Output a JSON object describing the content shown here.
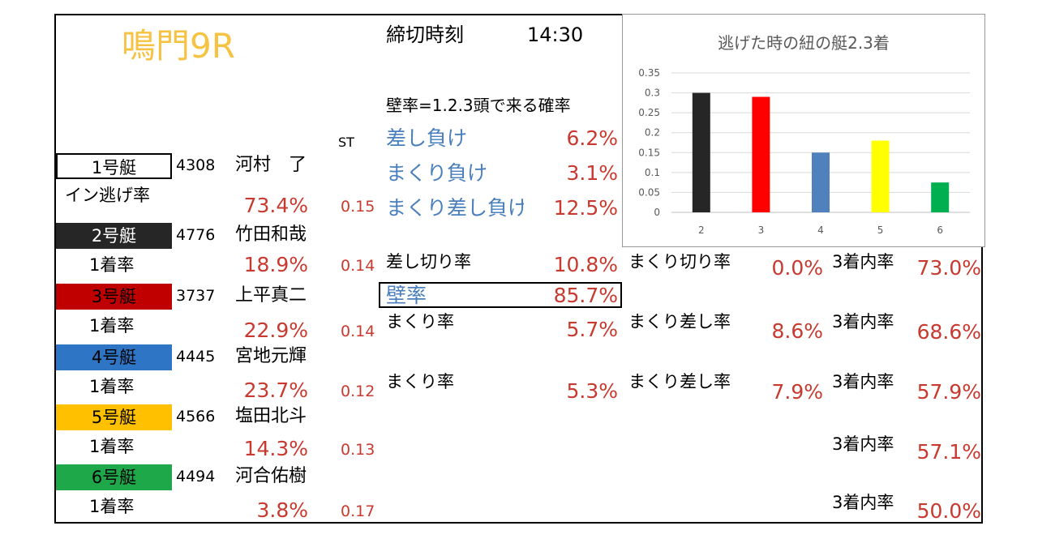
{
  "header": {
    "race": "鳴門9R",
    "deadline_label": "締切時刻",
    "deadline_time": "14:30",
    "kabe_def": "壁率=1.2.3頭で来る確率",
    "st_label": "ST"
  },
  "lose_stats": [
    {
      "label": "差し負け",
      "value": "6.2%"
    },
    {
      "label": "まくり負け",
      "value": "3.1%"
    },
    {
      "label": "まくり差し負け",
      "value": "12.5%"
    }
  ],
  "boats": [
    {
      "boat": "1号艇",
      "id": "4308",
      "name": "河村　了",
      "rate_label": "イン逃げ率",
      "rate": "73.4%",
      "st": "0.15",
      "bg": "#ffffff",
      "fg": "#000000"
    },
    {
      "boat": "2号艇",
      "id": "4776",
      "name": "竹田和哉",
      "rate_label": "1着率",
      "rate": "18.9%",
      "st": "0.14",
      "bg": "#262626",
      "fg": "#ffffff"
    },
    {
      "boat": "3号艇",
      "id": "3737",
      "name": "上平真二",
      "rate_label": "1着率",
      "rate": "22.9%",
      "st": "0.14",
      "bg": "#c00000",
      "fg": "#000000"
    },
    {
      "boat": "4号艇",
      "id": "4445",
      "name": "宮地元輝",
      "rate_label": "1着率",
      "rate": "23.7%",
      "st": "0.12",
      "bg": "#2e75c6",
      "fg": "#000000"
    },
    {
      "boat": "5号艇",
      "id": "4566",
      "name": "塩田北斗",
      "rate_label": "1着率",
      "rate": "14.3%",
      "st": "0.13",
      "bg": "#ffc000",
      "fg": "#000000"
    },
    {
      "boat": "6号艇",
      "id": "4494",
      "name": "河合佑樹",
      "rate_label": "1着率",
      "rate": "3.8%",
      "st": "0.17",
      "bg": "#1fa84a",
      "fg": "#000000"
    }
  ],
  "boat2_stats": {
    "sashikiri_label": "差し切り率",
    "sashikiri": "10.8%",
    "makurikiri_label": "まくり切り率",
    "makurikiri": "0.0%",
    "top3_label": "3着内率",
    "top3": "73.0%"
  },
  "kabe": {
    "label": "壁率",
    "value": "85.7%"
  },
  "boat3_stats": {
    "makuri_label": "まくり率",
    "makuri": "5.7%",
    "makurisashi_label": "まくり差し率",
    "makurisashi": "8.6%",
    "top3_label": "3着内率",
    "top3": "68.6%"
  },
  "boat4_stats": {
    "makuri_label": "まくり率",
    "makuri": "5.3%",
    "makurisashi_label": "まくり差し率",
    "makurisashi": "7.9%",
    "top3_label": "3着内率",
    "top3": "57.9%"
  },
  "boat5_stats": {
    "top3_label": "3着内率",
    "top3": "57.1%"
  },
  "boat6_stats": {
    "top3_label": "3着内率",
    "top3": "50.0%"
  },
  "chart_data": {
    "type": "bar",
    "title": "逃げた時の紐の艇2.3着",
    "categories": [
      "2",
      "3",
      "4",
      "5",
      "6"
    ],
    "values": [
      0.3,
      0.29,
      0.15,
      0.18,
      0.075
    ],
    "colors": [
      "#262626",
      "#ff0000",
      "#4f81bd",
      "#ffff00",
      "#00b050"
    ],
    "ylim": [
      0,
      0.35
    ],
    "yticks": [
      "0",
      "0.05",
      "0.1",
      "0.15",
      "0.2",
      "0.25",
      "0.3",
      "0.35"
    ],
    "grid": true,
    "xlabel": "",
    "ylabel": ""
  }
}
